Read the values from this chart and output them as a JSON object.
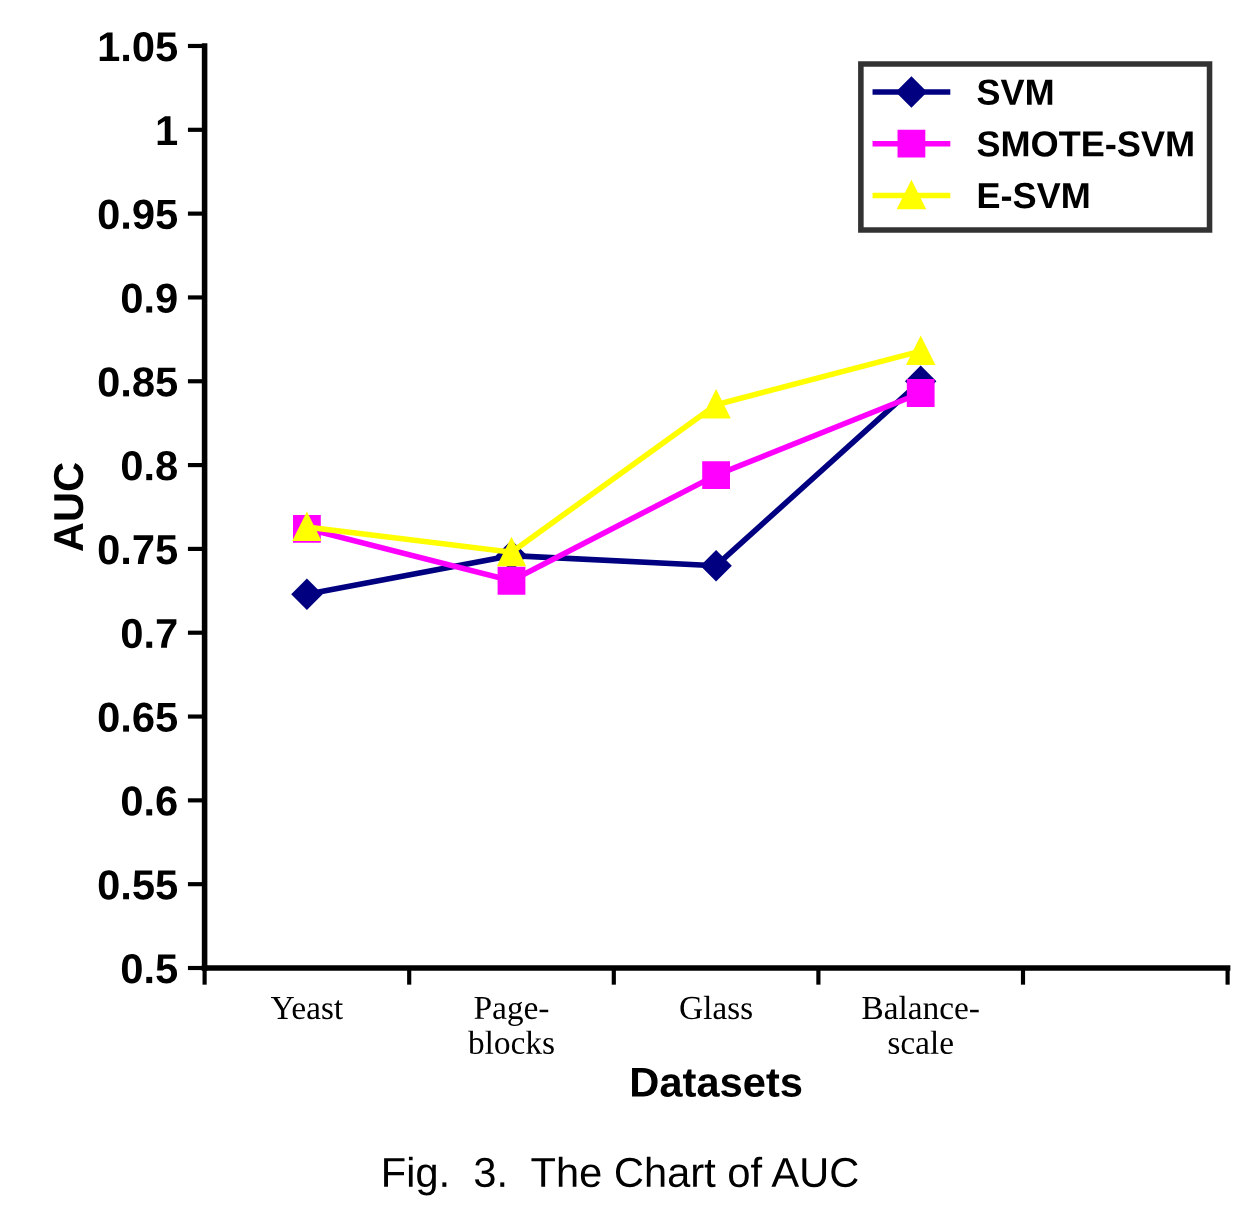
{
  "chart_data": {
    "type": "line",
    "xlabel": "Datasets",
    "ylabel": "AUC",
    "annotations": [
      "Fig.  3.  The Chart of AUC"
    ],
    "categories": [
      "Yeast",
      "Page-\nblocks",
      "Glass",
      "Balance-\nscale",
      null
    ],
    "series": [
      {
        "name": "SVM",
        "color": "#000080",
        "marker": "diamond",
        "values": [
          0.723,
          0.746,
          0.74,
          0.85,
          null
        ]
      },
      {
        "name": "SMOTE-SVM",
        "color": "#ff00ff",
        "marker": "square",
        "values": [
          0.762,
          0.731,
          0.794,
          0.843,
          null
        ]
      },
      {
        "name": "E-SVM",
        "color": "#ffff00",
        "marker": "triangle",
        "values": [
          0.763,
          0.748,
          0.836,
          0.868,
          null
        ]
      }
    ],
    "ylim": [
      0.5,
      1.05
    ],
    "yticks": [
      0.5,
      0.55,
      0.6,
      0.65,
      0.7,
      0.75,
      0.8,
      0.85,
      0.9,
      0.95,
      1,
      1.05
    ],
    "grid": false,
    "legend": "top right",
    "line_style": "solid"
  }
}
